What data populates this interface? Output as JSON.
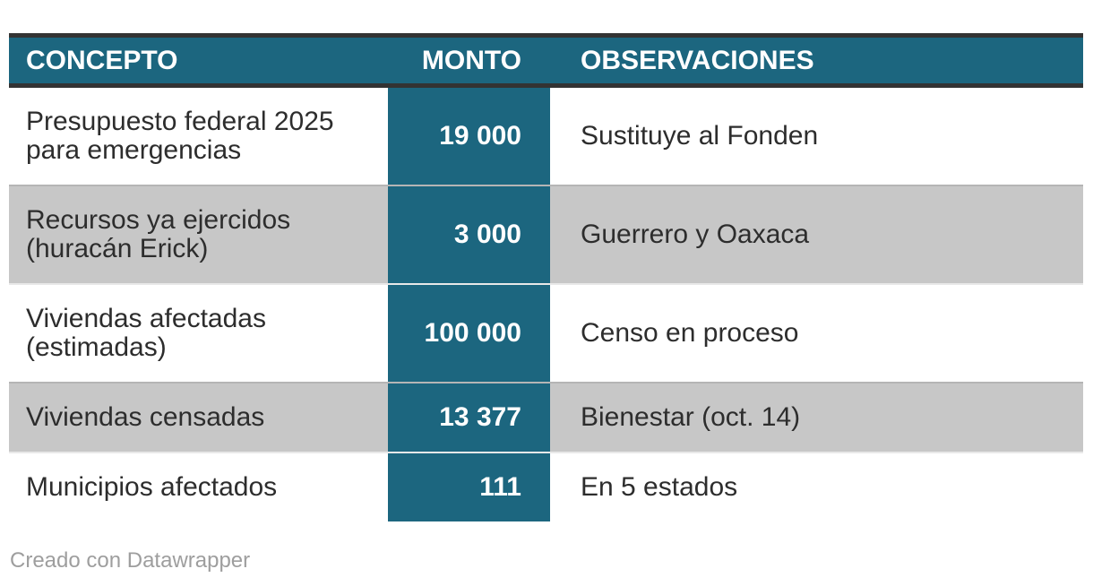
{
  "table": {
    "header": {
      "concepto": "CONCEPTO",
      "monto": "MONTO",
      "observaciones": "OBSERVACIONES"
    },
    "rows": [
      {
        "concepto": "Presupuesto federal 2025\npara emergencias",
        "monto": "19 000",
        "observaciones": "Sustituye al Fonden"
      },
      {
        "concepto": "Recursos ya ejercidos\n(huracán Erick)",
        "monto": "3 000",
        "observaciones": "Guerrero y Oaxaca"
      },
      {
        "concepto": "Viviendas afectadas\n(estimadas)",
        "monto": "100 000",
        "observaciones": "Censo en proceso"
      },
      {
        "concepto": "Viviendas censadas",
        "monto": "13 377",
        "observaciones": "Bienestar (oct. 14)"
      },
      {
        "concepto": "Municipios afectados",
        "monto": "111",
        "observaciones": "En 5 estados"
      }
    ]
  },
  "footer": {
    "credit": "Creado con Datawrapper"
  },
  "chart_data": {
    "type": "table",
    "columns": [
      "CONCEPTO",
      "MONTO",
      "OBSERVACIONES"
    ],
    "rows": [
      [
        "Presupuesto federal 2025 para emergencias",
        "19 000",
        "Sustituye al Fonden"
      ],
      [
        "Recursos ya ejercidos (huracán Erick)",
        "3 000",
        "Guerrero y Oaxaca"
      ],
      [
        "Viviendas afectadas (estimadas)",
        "100 000",
        "Censo en proceso"
      ],
      [
        "Viviendas censadas",
        "13 377",
        "Bienestar (oct. 14)"
      ],
      [
        "Municipios afectados",
        "111",
        "En 5 estados"
      ]
    ],
    "monto_values": [
      19000,
      3000,
      100000,
      13377,
      111
    ],
    "credit": "Creado con Datawrapper",
    "layout_hints": "MONTO column highlighted with teal background, alternating row shading, dark rules above and below header"
  },
  "colors": {
    "accent_teal": "#1c667f",
    "border_dark": "#333333",
    "row_alt_gray": "#c7c7c7",
    "body_text": "#2d2d2d",
    "header_text": "#ffffff",
    "footer_text": "#9e9e9e"
  }
}
